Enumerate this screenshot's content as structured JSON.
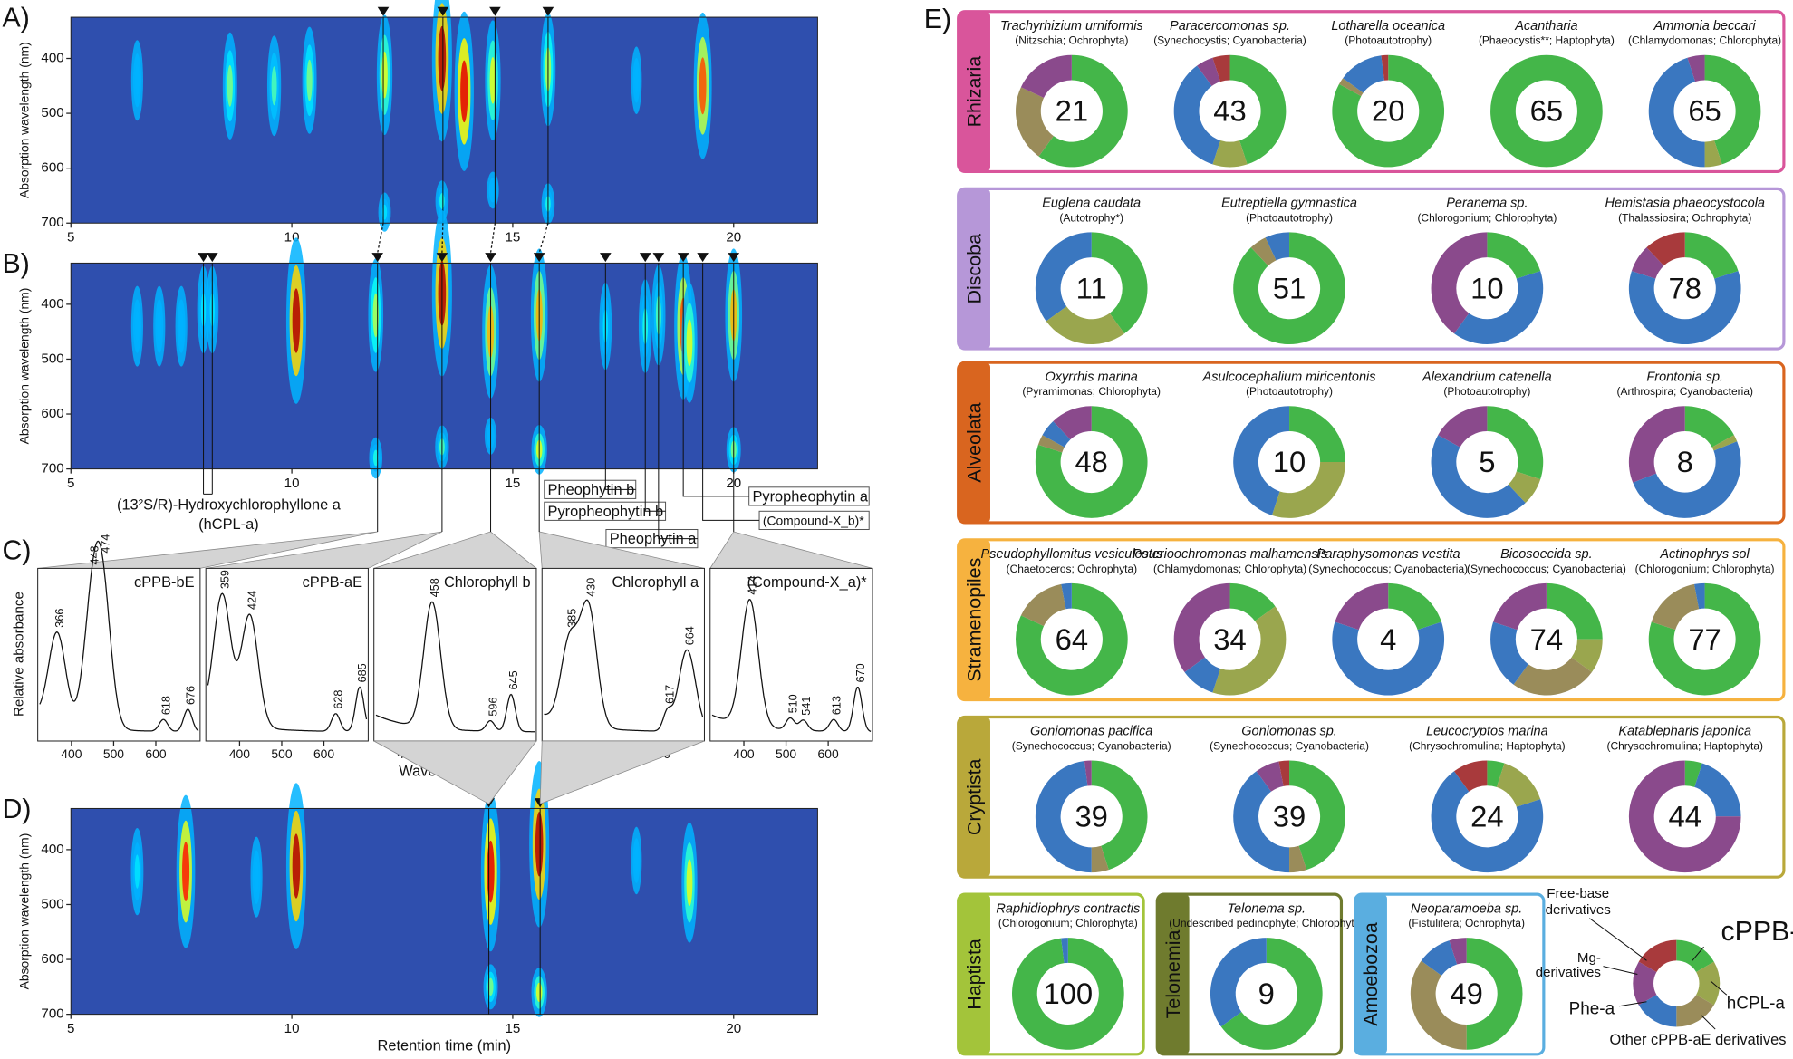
{
  "heatmap_axes": {
    "xlim": [
      5,
      21.9
    ],
    "xticks": [
      5,
      10,
      15,
      20
    ],
    "ylim": [
      325,
      700
    ],
    "yticks": [
      400,
      500,
      600,
      700
    ],
    "ylabel": "Absorption wavelength (nm)",
    "xlabel": "Retention time (min)"
  },
  "heatmaps": [
    {
      "letter": "A)",
      "markers": [
        12.07,
        13.42,
        14.6,
        15.8
      ],
      "peaks": [
        {
          "rt": 6.5,
          "nm": 440,
          "level": 0.3
        },
        {
          "rt": 8.6,
          "nm": 450,
          "level": 0.5
        },
        {
          "rt": 9.6,
          "nm": 450,
          "level": 0.45
        },
        {
          "rt": 10.4,
          "nm": 440,
          "level": 0.5
        },
        {
          "rt": 12.1,
          "nm": 430,
          "level": 0.6
        },
        {
          "rt": 12.1,
          "nm": 680,
          "level": 0.35
        },
        {
          "rt": 13.4,
          "nm": 400,
          "level": 0.95
        },
        {
          "rt": 13.4,
          "nm": 660,
          "level": 0.4
        },
        {
          "rt": 13.9,
          "nm": 460,
          "level": 0.9
        },
        {
          "rt": 14.55,
          "nm": 440,
          "level": 0.6
        },
        {
          "rt": 14.55,
          "nm": 640,
          "level": 0.3
        },
        {
          "rt": 15.8,
          "nm": 420,
          "level": 0.55
        },
        {
          "rt": 15.8,
          "nm": 665,
          "level": 0.4
        },
        {
          "rt": 17.8,
          "nm": 440,
          "level": 0.2
        },
        {
          "rt": 19.3,
          "nm": 450,
          "level": 0.8
        }
      ]
    },
    {
      "letter": "B)",
      "markers": [
        8.0,
        8.2,
        11.94,
        13.4,
        14.5,
        15.6,
        17.1,
        18.0,
        18.3,
        18.86,
        19.3,
        20.0
      ],
      "peaks": [
        {
          "rt": 6.5,
          "nm": 440,
          "level": 0.3
        },
        {
          "rt": 7.0,
          "nm": 440,
          "level": 0.3
        },
        {
          "rt": 7.5,
          "nm": 440,
          "level": 0.3
        },
        {
          "rt": 8.0,
          "nm": 410,
          "level": 0.35
        },
        {
          "rt": 8.2,
          "nm": 410,
          "level": 0.35
        },
        {
          "rt": 10.1,
          "nm": 430,
          "level": 0.95
        },
        {
          "rt": 11.9,
          "nm": 420,
          "level": 0.55
        },
        {
          "rt": 11.9,
          "nm": 680,
          "level": 0.4
        },
        {
          "rt": 13.4,
          "nm": 380,
          "level": 0.95
        },
        {
          "rt": 13.4,
          "nm": 660,
          "level": 0.45
        },
        {
          "rt": 14.5,
          "nm": 450,
          "level": 0.7
        },
        {
          "rt": 14.5,
          "nm": 640,
          "level": 0.3
        },
        {
          "rt": 15.6,
          "nm": 420,
          "level": 0.7
        },
        {
          "rt": 15.6,
          "nm": 665,
          "level": 0.6
        },
        {
          "rt": 17.1,
          "nm": 440,
          "level": 0.35
        },
        {
          "rt": 18.0,
          "nm": 440,
          "level": 0.4
        },
        {
          "rt": 18.3,
          "nm": 420,
          "level": 0.45
        },
        {
          "rt": 18.86,
          "nm": 440,
          "level": 0.8
        },
        {
          "rt": 19.0,
          "nm": 470,
          "level": 0.6
        },
        {
          "rt": 20.0,
          "nm": 420,
          "level": 0.7
        },
        {
          "rt": 20.0,
          "nm": 665,
          "level": 0.5
        }
      ]
    },
    {
      "letter": "D)",
      "markers": [
        14.46,
        15.62
      ],
      "peaks": [
        {
          "rt": 6.5,
          "nm": 440,
          "level": 0.35
        },
        {
          "rt": 7.6,
          "nm": 440,
          "level": 0.85
        },
        {
          "rt": 9.2,
          "nm": 450,
          "level": 0.3
        },
        {
          "rt": 10.1,
          "nm": 430,
          "level": 0.95
        },
        {
          "rt": 14.5,
          "nm": 440,
          "level": 0.9
        },
        {
          "rt": 14.5,
          "nm": 650,
          "level": 0.5
        },
        {
          "rt": 15.6,
          "nm": 390,
          "level": 0.95
        },
        {
          "rt": 15.6,
          "nm": 660,
          "level": 0.6
        },
        {
          "rt": 17.8,
          "nm": 420,
          "level": 0.2
        },
        {
          "rt": 19.0,
          "nm": 460,
          "level": 0.6
        }
      ]
    }
  ],
  "compounds": {
    "hcpl": [
      "(13²S/R)-Hydroxychlorophyllone a",
      "(hCPL-a)"
    ],
    "boxes": [
      "Pheophytin b",
      "Pyropheophytin b",
      "Pheophytin a",
      "Pyropheophytin a",
      "(Compound-X_b)*"
    ]
  },
  "spectra": {
    "letter": "C)",
    "ylabel": "Relative absorbance",
    "xlabel": "Wavelength (nm)",
    "xlim": [
      320,
      705
    ],
    "xticks": [
      400,
      500,
      600
    ],
    "items": [
      {
        "title": "cPPB-bE",
        "peaks": [
          {
            "nm": 366,
            "height": 0.6
          },
          {
            "nm": 448,
            "height": 0.7
          },
          {
            "nm": 474,
            "height": 0.85
          },
          {
            "nm": 618,
            "height": 0.08
          },
          {
            "nm": 676,
            "height": 0.15
          }
        ]
      },
      {
        "title": "cPPB-aE",
        "peaks": [
          {
            "nm": 359,
            "height": 0.85
          },
          {
            "nm": 424,
            "height": 0.75
          },
          {
            "nm": 628,
            "height": 0.12
          },
          {
            "nm": 685,
            "height": 0.3
          }
        ]
      },
      {
        "title": "Chlorophyll b",
        "peaks": [
          {
            "nm": 458,
            "height": 0.85
          },
          {
            "nm": 596,
            "height": 0.07
          },
          {
            "nm": 645,
            "height": 0.25
          }
        ]
      },
      {
        "title": "Chlorophyll a",
        "peaks": [
          {
            "nm": 385,
            "height": 0.55
          },
          {
            "nm": 430,
            "height": 0.8
          },
          {
            "nm": 617,
            "height": 0.12
          },
          {
            "nm": 664,
            "height": 0.55
          }
        ]
      },
      {
        "title": "(Compound-X_a)*",
        "peaks": [
          {
            "nm": 414,
            "height": 0.85
          },
          {
            "nm": 510,
            "height": 0.08
          },
          {
            "nm": 541,
            "height": 0.07
          },
          {
            "nm": 613,
            "height": 0.08
          },
          {
            "nm": 670,
            "height": 0.3
          }
        ]
      }
    ]
  },
  "composition": {
    "letter": "E)",
    "segments": [
      [
        "cPPB-aE"
      ],
      [
        "hCPL-a"
      ],
      [
        "Other cPPB-aE derivatives"
      ],
      [
        "Phe-a"
      ],
      [
        "Mg-",
        "derivatives"
      ],
      [
        "Free-base",
        "derivatives"
      ]
    ],
    "colors": [
      "#44b649",
      "#9aa64e",
      "#9a8c5a",
      "#3a77c0",
      "#8a4a8c",
      "#a83a3c"
    ],
    "groups": [
      {
        "name": "Rhizaria",
        "color": "#d9559b",
        "taxa": [
          {
            "name": "Trachyrhizium urniformis",
            "source": "(Nitzschia; Ochrophyta)",
            "value": 21,
            "fractions": [
              60,
              0,
              22,
              0,
              18,
              0
            ]
          },
          {
            "name": "Paracercomonas sp.",
            "source": "(Synechocystis; Cyanobacteria)",
            "value": 43,
            "fractions": [
              45,
              10,
              0,
              35,
              5,
              5
            ]
          },
          {
            "name": "Lotharella oceanica",
            "source": "(Photoautotrophy)",
            "value": 20,
            "fractions": [
              83,
              0,
              2,
              13,
              0,
              2
            ]
          },
          {
            "name": "Acantharia",
            "source": "(Phaeocystis**; Haptophyta)",
            "value": 65,
            "fractions": [
              100,
              0,
              0,
              0,
              0,
              0
            ]
          },
          {
            "name": "Ammonia beccari",
            "source": "(Chlamydomonas; Chlorophyta)",
            "value": 65,
            "fractions": [
              45,
              5,
              0,
              45,
              5,
              0
            ]
          }
        ]
      },
      {
        "name": "Discoba",
        "color": "#b697d8",
        "taxa": [
          {
            "name": "Euglena caudata",
            "source": "(Autotrophy*)",
            "value": 11,
            "fractions": [
              40,
              25,
              0,
              35,
              0,
              0
            ]
          },
          {
            "name": "Eutreptiella gymnastica",
            "source": "(Photoautotrophy)",
            "value": 51,
            "fractions": [
              88,
              0,
              5,
              7,
              0,
              0
            ]
          },
          {
            "name": "Peranema sp.",
            "source": "(Chlorogonium; Chlorophyta)",
            "value": 10,
            "fractions": [
              20,
              0,
              0,
              40,
              40,
              0
            ]
          },
          {
            "name": "Hemistasia phaeocystocola",
            "source": "(Thalassiosira; Ochrophyta)",
            "value": 78,
            "fractions": [
              20,
              0,
              0,
              60,
              8,
              12
            ]
          }
        ]
      },
      {
        "name": "Alveolata",
        "color": "#d9651f",
        "taxa": [
          {
            "name": "Oxyrrhis marina",
            "source": "(Pyramimonas; Chlorophyta)",
            "value": 48,
            "fractions": [
              80,
              0,
              3,
              5,
              12,
              0
            ]
          },
          {
            "name": "Asulcocephalium miricentonis",
            "source": "(Photoautotrophy)",
            "value": 10,
            "fractions": [
              25,
              30,
              0,
              45,
              0,
              0
            ]
          },
          {
            "name": "Alexandrium catenella",
            "source": "(Photoautotrophy)",
            "value": 5,
            "fractions": [
              30,
              8,
              0,
              45,
              17,
              0
            ]
          },
          {
            "name": "Frontonia sp.",
            "source": "(Arthrospira; Cyanobacteria)",
            "value": 8,
            "fractions": [
              17,
              2,
              0,
              50,
              31,
              0
            ]
          }
        ]
      },
      {
        "name": "Stramenopiles",
        "color": "#f6b23f",
        "taxa": [
          {
            "name": "Pseudophyllomitus vesiculosus",
            "source": "(Chaetoceros; Ochrophyta)",
            "value": 64,
            "fractions": [
              82,
              0,
              15,
              3,
              0,
              0
            ]
          },
          {
            "name": "Poterioochromonas malhamensis",
            "source": "(Chlamydomonas; Chlorophyta)",
            "value": 34,
            "fractions": [
              15,
              40,
              0,
              10,
              35,
              0
            ]
          },
          {
            "name": "Paraphysomonas vestita",
            "source": "(Synechococcus; Cyanobacteria)",
            "value": 4,
            "fractions": [
              20,
              0,
              0,
              60,
              20,
              0
            ]
          },
          {
            "name": "Bicosoecida sp.",
            "source": "(Synechococcus; Cyanobacteria)",
            "value": 74,
            "fractions": [
              25,
              10,
              25,
              20,
              20,
              0
            ]
          },
          {
            "name": "Actinophrys sol",
            "source": "(Chlorogonium; Chlorophyta)",
            "value": 77,
            "fractions": [
              80,
              0,
              17,
              3,
              0,
              0
            ]
          }
        ]
      },
      {
        "name": "Cryptista",
        "color": "#b9a83a",
        "taxa": [
          {
            "name": "Goniomonas pacifica",
            "source": "(Synechococcus; Cyanobacteria)",
            "value": 39,
            "fractions": [
              45,
              0,
              5,
              48,
              2,
              0
            ]
          },
          {
            "name": "Goniomonas sp.",
            "source": "(Synechococcus; Cyanobacteria)",
            "value": 39,
            "fractions": [
              45,
              0,
              5,
              40,
              7,
              3
            ]
          },
          {
            "name": "Leucocryptos marina",
            "source": "(Chrysochromulina; Haptophyta)",
            "value": 24,
            "fractions": [
              5,
              15,
              0,
              70,
              0,
              10
            ]
          },
          {
            "name": "Katablepharis japonica",
            "source": "(Chrysochromulina; Haptophyta)",
            "value": 44,
            "fractions": [
              5,
              0,
              0,
              20,
              75,
              0
            ]
          }
        ]
      },
      {
        "name": "Haptista",
        "color": "#a3c43a",
        "taxa": [
          {
            "name": "Raphidiophrys contractis",
            "source": "(Chlorogonium; Chlorophyta)",
            "value": 100,
            "fractions": [
              98,
              0,
              0,
              2,
              0,
              0
            ]
          }
        ]
      },
      {
        "name": "Telonemia",
        "color": "#6f7b2e",
        "taxa": [
          {
            "name": "Telonema sp.",
            "source": "(Undescribed pedinophyte; Chlorophyta)",
            "value": 9,
            "fractions": [
              65,
              0,
              0,
              35,
              0,
              0
            ]
          }
        ]
      },
      {
        "name": "Amoebozoa",
        "color": "#5aaee0",
        "taxa": [
          {
            "name": "Neoparamoeba sp.",
            "source": "(Fistulifera; Ochrophyta)",
            "value": 49,
            "fractions": [
              50,
              0,
              35,
              10,
              5,
              0
            ]
          }
        ]
      }
    ]
  }
}
